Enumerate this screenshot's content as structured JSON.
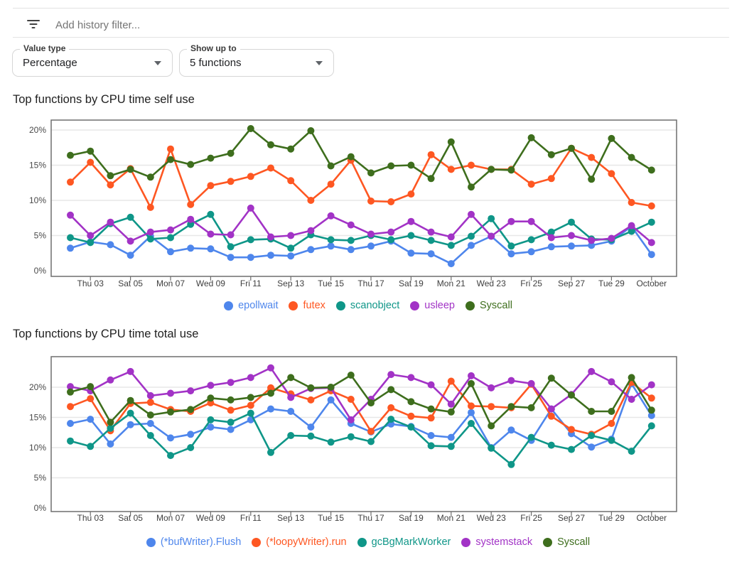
{
  "filter_bar": {
    "placeholder": "Add history filter...",
    "icon": "filter-list-icon"
  },
  "controls": {
    "value_type": {
      "label": "Value type",
      "value": "Percentage"
    },
    "show_up_to": {
      "label": "Show up to",
      "value": "5 functions"
    }
  },
  "colors": {
    "blue": "#4e86ec",
    "orange": "#fe5722",
    "teal": "#0f9688",
    "purple": "#a233c6",
    "green": "#3e6e1d",
    "grid": "#e7e7e7",
    "frame": "#6e6e6e",
    "tick_text": "#3f3f3f"
  },
  "chart_data": [
    {
      "type": "line",
      "title": "Top functions by CPU time self use",
      "xlabel": "",
      "ylabel": "",
      "ylim": [
        0,
        21.4
      ],
      "grid": true,
      "legend_position": "bottom",
      "y_ticks": [
        {
          "v": 20,
          "label": "20%"
        },
        {
          "v": 15,
          "label": "15%"
        },
        {
          "v": 10,
          "label": "10%"
        },
        {
          "v": 5,
          "label": "5%"
        },
        {
          "v": 0,
          "label": "0%"
        }
      ],
      "x_ticks": [
        {
          "i": 1,
          "label": "Thu 03"
        },
        {
          "i": 3,
          "label": "Sat 05"
        },
        {
          "i": 5,
          "label": "Mon 07"
        },
        {
          "i": 7,
          "label": "Wed 09"
        },
        {
          "i": 9,
          "label": "Fri 11"
        },
        {
          "i": 11,
          "label": "Sep 13"
        },
        {
          "i": 13,
          "label": "Tue 15"
        },
        {
          "i": 15,
          "label": "Thu 17"
        },
        {
          "i": 17,
          "label": "Sat 19"
        },
        {
          "i": 19,
          "label": "Mon 21"
        },
        {
          "i": 21,
          "label": "Wed 23"
        },
        {
          "i": 23,
          "label": "Fri 25"
        },
        {
          "i": 25,
          "label": "Sep 27"
        },
        {
          "i": 27,
          "label": "Tue 29"
        },
        {
          "i": 29,
          "label": "October"
        }
      ],
      "series": [
        {
          "name": "epollwait",
          "color": "#4e86ec",
          "values": [
            3.2,
            4.1,
            3.7,
            2.2,
            4.9,
            2.7,
            3.2,
            3.1,
            1.9,
            1.9,
            2.2,
            2.1,
            3.0,
            3.5,
            3.0,
            3.5,
            4.2,
            2.5,
            2.4,
            1.0,
            3.6,
            4.9,
            2.4,
            2.7,
            3.4,
            3.5,
            3.6,
            4.2,
            6.3,
            2.3
          ]
        },
        {
          "name": "futex",
          "color": "#fe5722",
          "values": [
            12.6,
            15.4,
            12.2,
            14.5,
            9.0,
            17.3,
            9.4,
            12.1,
            12.7,
            13.4,
            14.6,
            12.8,
            10.0,
            12.3,
            15.7,
            9.9,
            9.8,
            10.9,
            16.5,
            14.4,
            15.0,
            14.4,
            14.4,
            12.3,
            13.1,
            17.4,
            16.1,
            13.8,
            9.7,
            9.2
          ]
        },
        {
          "name": "scanobject",
          "color": "#0f9688",
          "values": [
            4.7,
            4.0,
            6.7,
            7.6,
            4.5,
            4.7,
            6.6,
            8.0,
            3.4,
            4.4,
            4.5,
            3.2,
            5.1,
            4.4,
            4.3,
            5.0,
            4.4,
            5.0,
            4.3,
            3.6,
            4.9,
            7.4,
            3.5,
            4.4,
            5.5,
            6.9,
            4.5,
            4.4,
            5.6,
            6.9
          ]
        },
        {
          "name": "usleep",
          "color": "#a233c6",
          "values": [
            7.9,
            5.0,
            6.9,
            4.2,
            5.5,
            5.8,
            7.3,
            5.2,
            5.1,
            8.9,
            4.8,
            5.0,
            5.7,
            7.8,
            6.5,
            5.2,
            5.5,
            7.0,
            5.5,
            4.8,
            8.0,
            4.9,
            7.0,
            7.0,
            4.7,
            5.0,
            4.3,
            4.6,
            6.4,
            4.0
          ]
        },
        {
          "name": "Syscall",
          "color": "#3e6e1d",
          "values": [
            16.4,
            17.0,
            13.5,
            14.4,
            13.3,
            15.8,
            15.1,
            16.0,
            16.7,
            20.2,
            17.9,
            17.3,
            19.9,
            14.9,
            16.2,
            13.9,
            14.9,
            15.0,
            13.1,
            18.3,
            11.9,
            14.4,
            14.3,
            18.9,
            16.5,
            17.4,
            13.0,
            18.8,
            16.1,
            14.3
          ]
        }
      ]
    },
    {
      "type": "line",
      "title": "Top functions by CPU time total use",
      "xlabel": "",
      "ylabel": "",
      "ylim": [
        0,
        25.1
      ],
      "grid": true,
      "legend_position": "bottom",
      "y_ticks": [
        {
          "v": 20,
          "label": "20%"
        },
        {
          "v": 15,
          "label": "15%"
        },
        {
          "v": 10,
          "label": "10%"
        },
        {
          "v": 5,
          "label": "5%"
        },
        {
          "v": 0,
          "label": "0%"
        }
      ],
      "x_ticks": [
        {
          "i": 1,
          "label": "Thu 03"
        },
        {
          "i": 3,
          "label": "Sat 05"
        },
        {
          "i": 5,
          "label": "Mon 07"
        },
        {
          "i": 7,
          "label": "Wed 09"
        },
        {
          "i": 9,
          "label": "Fri 11"
        },
        {
          "i": 11,
          "label": "Sep 13"
        },
        {
          "i": 13,
          "label": "Tue 15"
        },
        {
          "i": 15,
          "label": "Thu 17"
        },
        {
          "i": 17,
          "label": "Sat 19"
        },
        {
          "i": 19,
          "label": "Mon 21"
        },
        {
          "i": 21,
          "label": "Wed 23"
        },
        {
          "i": 23,
          "label": "Fri 25"
        },
        {
          "i": 25,
          "label": "Sep 27"
        },
        {
          "i": 27,
          "label": "Tue 29"
        },
        {
          "i": 29,
          "label": "October"
        }
      ],
      "series": [
        {
          "name": "(*bufWriter).Flush",
          "color": "#4e86ec",
          "values": [
            14.0,
            14.7,
            10.6,
            13.8,
            14.0,
            11.6,
            12.2,
            13.4,
            13.0,
            14.6,
            16.4,
            16.0,
            13.4,
            17.9,
            14.0,
            12.6,
            13.9,
            13.5,
            12.0,
            11.7,
            15.8,
            10.0,
            12.9,
            11.2,
            16.4,
            12.3,
            10.1,
            11.4,
            20.6,
            15.3
          ]
        },
        {
          "name": "(*loopyWriter).run",
          "color": "#fe5722",
          "values": [
            16.8,
            18.1,
            12.8,
            17.3,
            17.5,
            16.3,
            16.0,
            17.4,
            16.2,
            17.0,
            19.9,
            18.9,
            17.9,
            19.4,
            18.0,
            12.7,
            16.6,
            15.2,
            14.9,
            21.0,
            16.9,
            16.8,
            16.6,
            20.5,
            15.2,
            13.0,
            12.2,
            14.0,
            20.8,
            18.2
          ]
        },
        {
          "name": "gcBgMarkWorker",
          "color": "#0f9688",
          "values": [
            11.1,
            10.2,
            13.2,
            15.7,
            12.0,
            8.7,
            10.0,
            14.6,
            14.2,
            15.7,
            9.2,
            12.0,
            11.9,
            10.9,
            11.8,
            11.0,
            14.7,
            13.4,
            10.3,
            10.2,
            14.0,
            9.9,
            7.2,
            11.7,
            10.4,
            9.7,
            12.0,
            11.2,
            9.4,
            13.6
          ]
        },
        {
          "name": "systemstack",
          "color": "#a233c6",
          "values": [
            20.1,
            19.4,
            21.2,
            22.6,
            18.6,
            19.0,
            19.4,
            20.3,
            20.8,
            21.6,
            23.2,
            18.3,
            19.8,
            19.9,
            14.6,
            18.0,
            22.1,
            21.6,
            20.4,
            17.2,
            21.9,
            19.9,
            21.1,
            20.6,
            16.4,
            18.8,
            22.6,
            20.9,
            18.0,
            20.4
          ]
        },
        {
          "name": "Syscall",
          "color": "#3e6e1d",
          "values": [
            19.2,
            20.1,
            14.2,
            17.8,
            15.4,
            15.9,
            16.3,
            18.2,
            17.9,
            18.3,
            19.0,
            21.6,
            19.9,
            20.0,
            22.0,
            17.4,
            19.6,
            17.6,
            16.4,
            15.9,
            20.6,
            13.6,
            16.8,
            16.6,
            21.5,
            18.7,
            16.0,
            16.0,
            21.6,
            16.2
          ]
        }
      ]
    }
  ]
}
